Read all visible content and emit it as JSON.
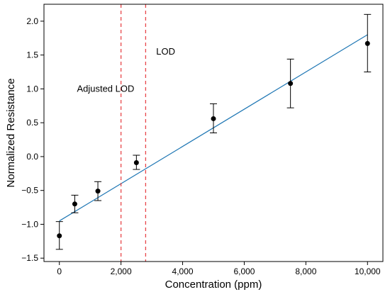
{
  "chart_data": {
    "type": "scatter",
    "title": "",
    "xlabel": "Concentration (ppm)",
    "ylabel": "Normalized Resistance",
    "xlim": [
      -500,
      10500
    ],
    "ylim": [
      -1.55,
      2.25
    ],
    "x_ticks": [
      0,
      2000,
      4000,
      6000,
      8000,
      10000
    ],
    "x_tick_labels": [
      "0",
      "2,000",
      "4,000",
      "6,000",
      "8,000",
      "10,000"
    ],
    "y_ticks": [
      -1.5,
      -1.0,
      -0.5,
      0.0,
      0.5,
      1.0,
      1.5,
      2.0
    ],
    "y_tick_labels": [
      "−1.5",
      "−1.0",
      "−0.5",
      "0.0",
      "0.5",
      "1.0",
      "1.5",
      "2.0"
    ],
    "grid": false,
    "points": [
      {
        "x": 0,
        "y": -1.17,
        "err_low": -1.37,
        "err_high": -0.96
      },
      {
        "x": 500,
        "y": -0.7,
        "err_low": -0.83,
        "err_high": -0.57
      },
      {
        "x": 1250,
        "y": -0.51,
        "err_low": -0.65,
        "err_high": -0.37
      },
      {
        "x": 2500,
        "y": -0.09,
        "err_low": -0.19,
        "err_high": 0.02
      },
      {
        "x": 5000,
        "y": 0.56,
        "err_low": 0.35,
        "err_high": 0.78
      },
      {
        "x": 7500,
        "y": 1.08,
        "err_low": 0.72,
        "err_high": 1.44
      },
      {
        "x": 10000,
        "y": 1.67,
        "err_low": 1.25,
        "err_high": 2.1
      }
    ],
    "fit_line": {
      "x": [
        0,
        10000
      ],
      "y": [
        -0.95,
        1.8
      ],
      "color": "#1f77b4"
    },
    "vlines": [
      {
        "x": 2000,
        "label": "Adjusted LOD",
        "color": "#e8474a",
        "label_x": 1500,
        "label_y": 1.0
      },
      {
        "x": 2800,
        "label": "LOD",
        "color": "#e8474a",
        "label_x": 3450,
        "label_y": 1.55
      }
    ],
    "marker_color": "#000000"
  }
}
